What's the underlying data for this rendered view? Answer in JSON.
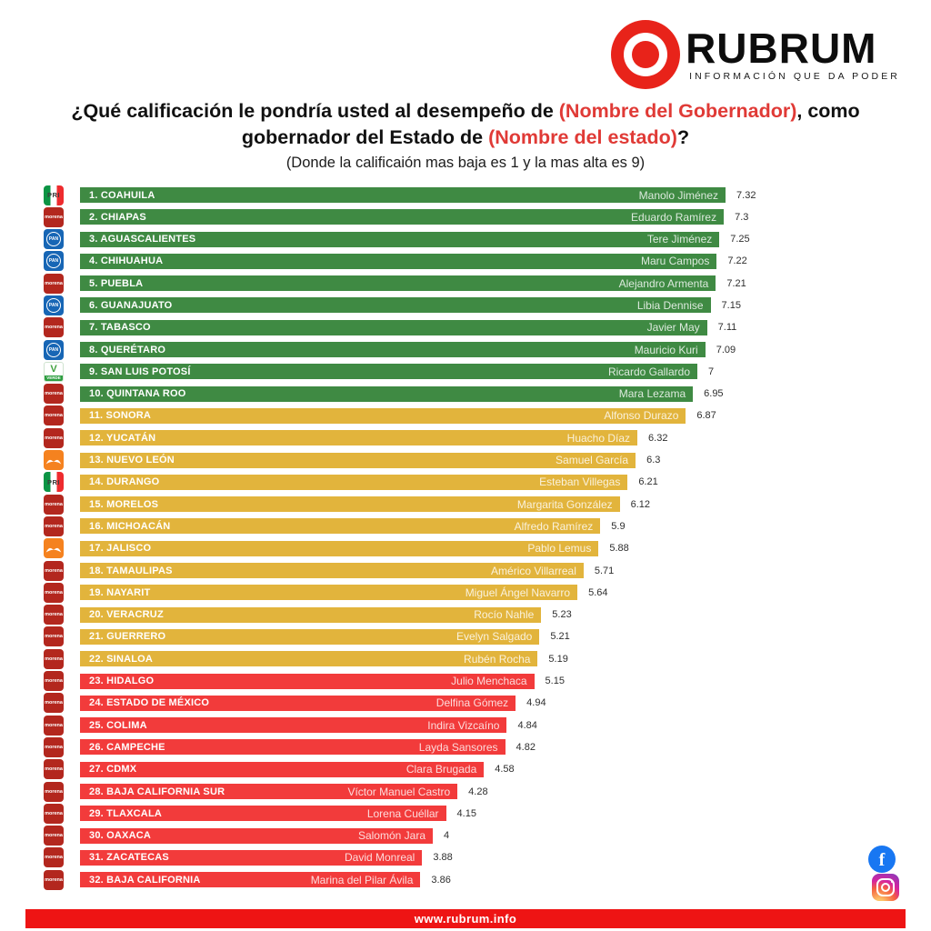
{
  "logo": {
    "brand": "RUBRUM",
    "tagline": "INFORMACIÓN QUE DA PODER"
  },
  "title": {
    "part1": "¿Qué calificación le pondría usted al desempeño de ",
    "highlight1": "(Nombre del Gobernador)",
    "part2": ", como gobernador del Estado de ",
    "highlight2": "(Nombre del estado)",
    "part3": "?",
    "subtitle": "(Donde la calificaión mas baja es 1 y la mas alta es 9)"
  },
  "footer": {
    "url": "www.rubrum.info"
  },
  "social": {
    "icons": [
      "facebook",
      "instagram"
    ]
  },
  "colors": {
    "green": "#3f8a43",
    "yellow": "#e2b43c",
    "red": "#f23b3b",
    "footer_red": "#ee1414",
    "title_highlight_red": "#e03a36",
    "logo_red": "#e8231a"
  },
  "chart_data": {
    "type": "bar",
    "orientation": "horizontal",
    "title": "¿Qué calificación le pondría usted al desempeño de (Nombre del Gobernador), como gobernador del Estado de (Nombre del estado)?",
    "subtitle": "(Donde la calificaión mas baja es 1 y la mas alta es 9)",
    "xlim": [
      0,
      9
    ],
    "rating_scale": [
      1,
      9
    ],
    "legend_position": "none",
    "grid": false,
    "rows": [
      {
        "rank": 1,
        "label": "1. COAHUILA",
        "state": "COAHUILA",
        "governor": "Manolo Jiménez",
        "score": 7.32,
        "score_label": "7.32",
        "party": "PRI",
        "color_group": "green"
      },
      {
        "rank": 2,
        "label": "2. CHIAPAS",
        "state": "CHIAPAS",
        "governor": "Eduardo Ramírez",
        "score": 7.3,
        "score_label": "7.3",
        "party": "MORENA",
        "color_group": "green"
      },
      {
        "rank": 3,
        "label": "3. AGUASCALIENTES",
        "state": "AGUASCALIENTES",
        "governor": "Tere Jiménez",
        "score": 7.25,
        "score_label": "7.25",
        "party": "PAN",
        "color_group": "green"
      },
      {
        "rank": 4,
        "label": "4. CHIHUAHUA",
        "state": "CHIHUAHUA",
        "governor": "Maru Campos",
        "score": 7.22,
        "score_label": "7.22",
        "party": "PAN",
        "color_group": "green"
      },
      {
        "rank": 5,
        "label": "5. PUEBLA",
        "state": "PUEBLA",
        "governor": "Alejandro Armenta",
        "score": 7.21,
        "score_label": "7.21",
        "party": "MORENA",
        "color_group": "green"
      },
      {
        "rank": 6,
        "label": "6. GUANAJUATO",
        "state": "GUANAJUATO",
        "governor": "Libia Dennise",
        "score": 7.15,
        "score_label": "7.15",
        "party": "PAN",
        "color_group": "green"
      },
      {
        "rank": 7,
        "label": "7. TABASCO",
        "state": "TABASCO",
        "governor": "Javier May",
        "score": 7.11,
        "score_label": "7.11",
        "party": "MORENA",
        "color_group": "green"
      },
      {
        "rank": 8,
        "label": "8. QUERÉTARO",
        "state": "QUERÉTARO",
        "governor": "Mauricio Kuri",
        "score": 7.09,
        "score_label": "7.09",
        "party": "PAN",
        "color_group": "green"
      },
      {
        "rank": 9,
        "label": "9. SAN LUIS POTOSÍ",
        "state": "SAN LUIS POTOSÍ",
        "governor": "Ricardo Gallardo",
        "score": 7,
        "score_label": "7",
        "party": "PVEM",
        "color_group": "green"
      },
      {
        "rank": 10,
        "label": "10. QUINTANA ROO",
        "state": "QUINTANA ROO",
        "governor": "Mara Lezama",
        "score": 6.95,
        "score_label": "6.95",
        "party": "MORENA",
        "color_group": "green"
      },
      {
        "rank": 11,
        "label": "11. SONORA",
        "state": "SONORA",
        "governor": "Alfonso Durazo",
        "score": 6.87,
        "score_label": "6.87",
        "party": "MORENA",
        "color_group": "yellow"
      },
      {
        "rank": 12,
        "label": "12. YUCATÁN",
        "state": "YUCATÁN",
        "governor": "Huacho Díaz",
        "score": 6.32,
        "score_label": "6.32",
        "party": "MORENA",
        "color_group": "yellow"
      },
      {
        "rank": 13,
        "label": "13. NUEVO LEÓN",
        "state": "NUEVO LEÓN",
        "governor": "Samuel García",
        "score": 6.3,
        "score_label": "6.3",
        "party": "MC",
        "color_group": "yellow"
      },
      {
        "rank": 14,
        "label": "14. DURANGO",
        "state": "DURANGO",
        "governor": "Esteban Villegas",
        "score": 6.21,
        "score_label": "6.21",
        "party": "PRI",
        "color_group": "yellow"
      },
      {
        "rank": 15,
        "label": "15. MORELOS",
        "state": "MORELOS",
        "governor": "Margarita González",
        "score": 6.12,
        "score_label": "6.12",
        "party": "MORENA",
        "color_group": "yellow"
      },
      {
        "rank": 16,
        "label": "16. MICHOACÁN",
        "state": "MICHOACÁN",
        "governor": "Alfredo Ramírez",
        "score": 5.9,
        "score_label": "5.9",
        "party": "MORENA",
        "color_group": "yellow"
      },
      {
        "rank": 17,
        "label": "17. JALISCO",
        "state": "JALISCO",
        "governor": "Pablo Lemus",
        "score": 5.88,
        "score_label": "5.88",
        "party": "MC",
        "color_group": "yellow"
      },
      {
        "rank": 18,
        "label": "18. TAMAULIPAS",
        "state": "TAMAULIPAS",
        "governor": "Américo Villarreal",
        "score": 5.71,
        "score_label": "5.71",
        "party": "MORENA",
        "color_group": "yellow"
      },
      {
        "rank": 19,
        "label": "19. NAYARIT",
        "state": "NAYARIT",
        "governor": "Miguel Ángel Navarro",
        "score": 5.64,
        "score_label": "5.64",
        "party": "MORENA",
        "color_group": "yellow"
      },
      {
        "rank": 20,
        "label": "20. VERACRUZ",
        "state": "VERACRUZ",
        "governor": "Rocío Nahle",
        "score": 5.23,
        "score_label": "5.23",
        "party": "MORENA",
        "color_group": "yellow"
      },
      {
        "rank": 21,
        "label": "21. GUERRERO",
        "state": "GUERRERO",
        "governor": "Evelyn Salgado",
        "score": 5.21,
        "score_label": "5.21",
        "party": "MORENA",
        "color_group": "yellow"
      },
      {
        "rank": 22,
        "label": "22. SINALOA",
        "state": "SINALOA",
        "governor": "Rubén Rocha",
        "score": 5.19,
        "score_label": "5.19",
        "party": "MORENA",
        "color_group": "yellow"
      },
      {
        "rank": 23,
        "label": "23. HIDALGO",
        "state": "HIDALGO",
        "governor": "Julio Menchaca",
        "score": 5.15,
        "score_label": "5.15",
        "party": "MORENA",
        "color_group": "red"
      },
      {
        "rank": 24,
        "label": "24. ESTADO DE MÉXICO",
        "state": "ESTADO DE MÉXICO",
        "governor": "Delfina Gómez",
        "score": 4.94,
        "score_label": "4.94",
        "party": "MORENA",
        "color_group": "red"
      },
      {
        "rank": 25,
        "label": "25. COLIMA",
        "state": "COLIMA",
        "governor": "Indira Vizcaíno",
        "score": 4.84,
        "score_label": "4.84",
        "party": "MORENA",
        "color_group": "red"
      },
      {
        "rank": 26,
        "label": "26. CAMPECHE",
        "state": "CAMPECHE",
        "governor": "Layda Sansores",
        "score": 4.82,
        "score_label": "4.82",
        "party": "MORENA",
        "color_group": "red"
      },
      {
        "rank": 27,
        "label": "27. CDMX",
        "state": "CDMX",
        "governor": "Clara Brugada",
        "score": 4.58,
        "score_label": "4.58",
        "party": "MORENA",
        "color_group": "red"
      },
      {
        "rank": 28,
        "label": "28. BAJA CALIFORNIA SUR",
        "state": "BAJA CALIFORNIA SUR",
        "governor": "Víctor Manuel Castro",
        "score": 4.28,
        "score_label": "4.28",
        "party": "MORENA",
        "color_group": "red"
      },
      {
        "rank": 29,
        "label": "29. TLAXCALA",
        "state": "TLAXCALA",
        "governor": "Lorena Cuéllar",
        "score": 4.15,
        "score_label": "4.15",
        "party": "MORENA",
        "color_group": "red"
      },
      {
        "rank": 30,
        "label": "30. OAXACA",
        "state": "OAXACA",
        "governor": "Salomón Jara",
        "score": 4,
        "score_label": "4",
        "party": "MORENA",
        "color_group": "red"
      },
      {
        "rank": 31,
        "label": "31. ZACATECAS",
        "state": "ZACATECAS",
        "governor": "David Monreal",
        "score": 3.88,
        "score_label": "3.88",
        "party": "MORENA",
        "color_group": "red"
      },
      {
        "rank": 32,
        "label": "32. BAJA CALIFORNIA",
        "state": "BAJA CALIFORNIA",
        "governor": "Marina del Pilar Ávila",
        "score": 3.86,
        "score_label": "3.86",
        "party": "MORENA",
        "color_group": "red"
      }
    ]
  }
}
